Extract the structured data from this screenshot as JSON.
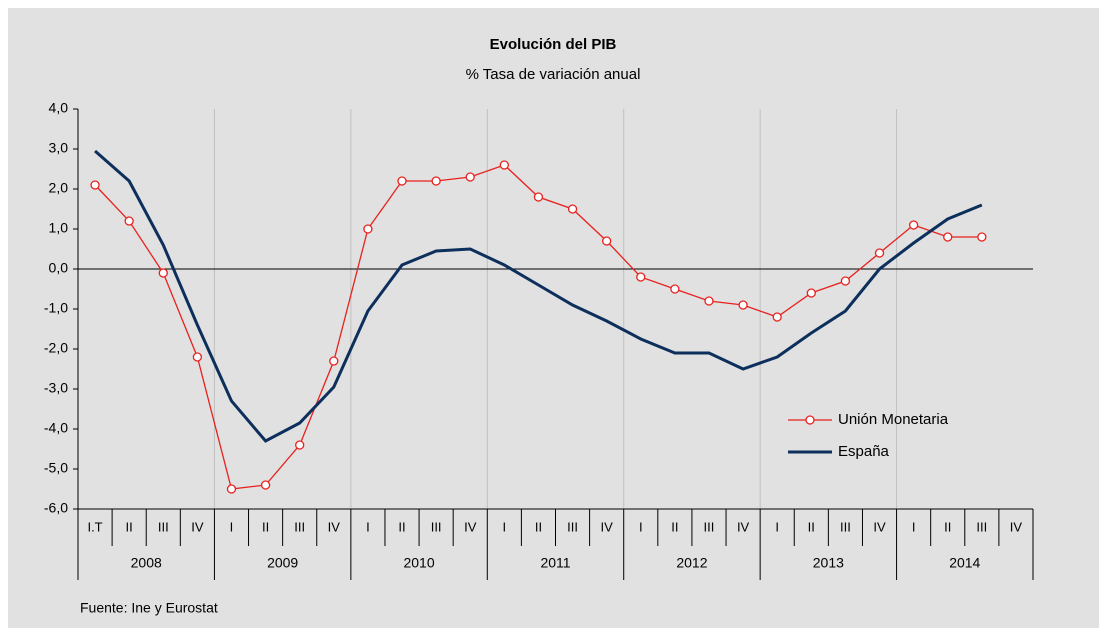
{
  "chart_data": {
    "type": "line",
    "title": "Evolución del PIB",
    "subtitle": "% Tasa de variación anual",
    "source": "Fuente: Ine y Eurostat",
    "categories": [
      "I.T",
      "II",
      "III",
      "IV",
      "I",
      "II",
      "III",
      "IV",
      "I",
      "II",
      "III",
      "IV",
      "I",
      "II",
      "III",
      "IV",
      "I",
      "II",
      "III",
      "IV",
      "I",
      "II",
      "III",
      "IV",
      "I",
      "II",
      "III",
      "IV"
    ],
    "years": [
      "2008",
      "2009",
      "2010",
      "2011",
      "2012",
      "2013",
      "2014"
    ],
    "series": [
      {
        "name": "Unión Monetaria",
        "color": "#e8211f",
        "marker": "circle",
        "values": [
          2.1,
          1.2,
          -0.1,
          -2.2,
          -5.5,
          -5.4,
          -4.4,
          -2.3,
          1.0,
          2.2,
          2.2,
          2.3,
          2.6,
          1.8,
          1.5,
          0.7,
          -0.2,
          -0.5,
          -0.8,
          -0.9,
          -1.2,
          -0.6,
          -0.3,
          0.4,
          1.1,
          0.8,
          0.8,
          null
        ]
      },
      {
        "name": "España",
        "color": "#0d2f5c",
        "marker": "none",
        "values": [
          2.95,
          2.2,
          0.6,
          -1.4,
          -3.3,
          -4.3,
          -3.85,
          -2.95,
          -1.05,
          0.1,
          0.45,
          0.5,
          0.1,
          -0.4,
          -0.9,
          -1.3,
          -1.75,
          -2.1,
          -2.1,
          -2.5,
          -2.2,
          -1.6,
          -1.05,
          0.0,
          0.65,
          1.25,
          1.6,
          null
        ]
      }
    ],
    "ylim": [
      -6,
      4
    ],
    "yticks": [
      {
        "value": 4,
        "label": "4,0"
      },
      {
        "value": 3,
        "label": "3,0"
      },
      {
        "value": 2,
        "label": "2,0"
      },
      {
        "value": 1,
        "label": "1,0"
      },
      {
        "value": 0,
        "label": "0,0"
      },
      {
        "value": -1,
        "label": "-1,0"
      },
      {
        "value": -2,
        "label": "-2,0"
      },
      {
        "value": -3,
        "label": "-3,0"
      },
      {
        "value": -4,
        "label": "-4,0"
      },
      {
        "value": -5,
        "label": "-5,0"
      },
      {
        "value": -6,
        "label": "-6,0"
      }
    ],
    "legend": "right"
  }
}
